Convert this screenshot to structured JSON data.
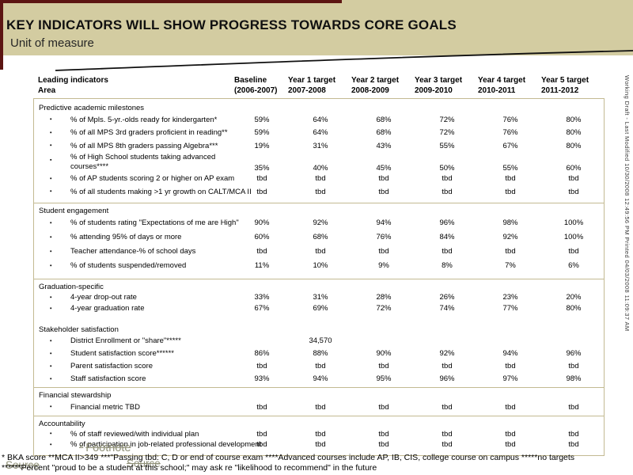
{
  "slide": {
    "title": "KEY INDICATORS WILL SHOW PROGRESS TOWARDS CORE GOALS",
    "subtitle": "Unit of measure"
  },
  "watermark": {
    "line1": "Working Draft - Last Modified 10/30/2008 12:49:56 PM",
    "line2": "Printed 04/03/2008 11:09:37 AM"
  },
  "table": {
    "corner_title": "Leading indicators",
    "corner_subtitle": "Area",
    "columns": [
      {
        "top": "Baseline",
        "bottom": "(2006-2007)"
      },
      {
        "top": "Year 1 target",
        "bottom": "2007-2008"
      },
      {
        "top": "Year 2 target",
        "bottom": "2008-2009"
      },
      {
        "top": "Year 3 target",
        "bottom": "2009-2010"
      },
      {
        "top": "Year 4 target",
        "bottom": "2010-2011"
      },
      {
        "top": "Year 5 target",
        "bottom": "2011-2012"
      }
    ],
    "sections": [
      {
        "title": "Predictive academic milestones",
        "rule": false,
        "rows": [
          {
            "label": "% of Mpls. 5-yr.-olds ready for kindergarten*",
            "values": [
              "59%",
              "64%",
              "68%",
              "72%",
              "76%",
              "80%"
            ]
          },
          {
            "label": "% of all MPS 3rd graders proficient in reading**",
            "values": [
              "59%",
              "64%",
              "68%",
              "72%",
              "76%",
              "80%"
            ]
          },
          {
            "label": "% of all MPS 8th graders passing Algebra***",
            "values": [
              "19%",
              "31%",
              "43%",
              "55%",
              "67%",
              "80%"
            ]
          },
          {
            "label": "% of High School students taking advanced courses****",
            "wrap": true,
            "values": [
              "35%",
              "40%",
              "45%",
              "50%",
              "55%",
              "60%"
            ]
          },
          {
            "label": "% of AP students scoring 2 or higher on AP exam",
            "values": [
              "tbd",
              "tbd",
              "tbd",
              "tbd",
              "tbd",
              "tbd"
            ]
          },
          {
            "label": "% of all students making >1 yr growth on CALT/MCA II",
            "values": [
              "tbd",
              "tbd",
              "tbd",
              "tbd",
              "tbd",
              "tbd"
            ]
          }
        ]
      },
      {
        "title": "Student engagement",
        "rule": true,
        "rows": [
          {
            "label": "% of students rating \"Expectations of me are High\"",
            "values": [
              "90%",
              "92%",
              "94%",
              "96%",
              "98%",
              "100%"
            ]
          },
          {
            "label": "% attending 95% of days or more",
            "values": [
              "60%",
              "68%",
              "76%",
              "84%",
              "92%",
              "100%"
            ]
          },
          {
            "label": "Teacher attendance-% of school days",
            "values": [
              "tbd",
              "tbd",
              "tbd",
              "tbd",
              "tbd",
              "tbd"
            ]
          },
          {
            "label": "% of students suspended/removed",
            "values": [
              "11%",
              "10%",
              "9%",
              "8%",
              "7%",
              "6%"
            ]
          }
        ]
      },
      {
        "title": "Graduation-specific",
        "rule": true,
        "rows": [
          {
            "label": "4-year drop-out rate",
            "values": [
              "33%",
              "31%",
              "28%",
              "26%",
              "23%",
              "20%"
            ]
          },
          {
            "label": "4-year graduation rate",
            "values": [
              "67%",
              "69%",
              "72%",
              "74%",
              "77%",
              "80%"
            ]
          }
        ]
      },
      {
        "title": "Stakeholder satisfaction",
        "rule": false,
        "rows": [
          {
            "label": "District Enrollment or \"share\"*****",
            "values": [
              "",
              "34,570",
              "",
              "",
              "",
              ""
            ]
          },
          {
            "label": "Student satisfaction score******",
            "values": [
              "86%",
              "88%",
              "90%",
              "92%",
              "94%",
              "96%"
            ]
          },
          {
            "label": "Parent satisfaction score",
            "values": [
              "tbd",
              "tbd",
              "tbd",
              "tbd",
              "tbd",
              "tbd"
            ]
          },
          {
            "label": "Staff satisfaction score",
            "values": [
              "93%",
              "94%",
              "95%",
              "96%",
              "97%",
              "98%"
            ]
          }
        ]
      },
      {
        "title": "Financial stewardship",
        "rule": true,
        "rows": [
          {
            "label": "Financial metric TBD",
            "values": [
              "tbd",
              "tbd",
              "tbd",
              "tbd",
              "tbd",
              "tbd"
            ]
          }
        ]
      },
      {
        "title": "Accountability",
        "rule": true,
        "rows": [
          {
            "label": "% of staff reviewed/with individual plan",
            "values": [
              "tbd",
              "tbd",
              "tbd",
              "tbd",
              "tbd",
              "tbd"
            ]
          },
          {
            "label": "% of participation in job-related professional development",
            "values": [
              "tbd",
              "tbd",
              "tbd",
              "tbd",
              "tbd",
              "tbd"
            ]
          }
        ]
      }
    ]
  },
  "footnotes": {
    "line1": "* BKA score **MCA II>349 ***\"Passing tbd: C, D or end of course exam ****Advanced courses include AP, IB, CIS, college course on campus *****no targets",
    "line2": "******Percent \"proud to be a student at this school;\" may ask re \"likelihood to recommend\" in the future"
  },
  "placeholders": {
    "marker": "×",
    "footnote": "Footnote",
    "source": "Source",
    "source2": "Source"
  },
  "colors": {
    "band": "#d3cca1",
    "edge": "#5c1512",
    "table_border": "#c3ba92",
    "placeholder_gray": "#8f9078"
  }
}
